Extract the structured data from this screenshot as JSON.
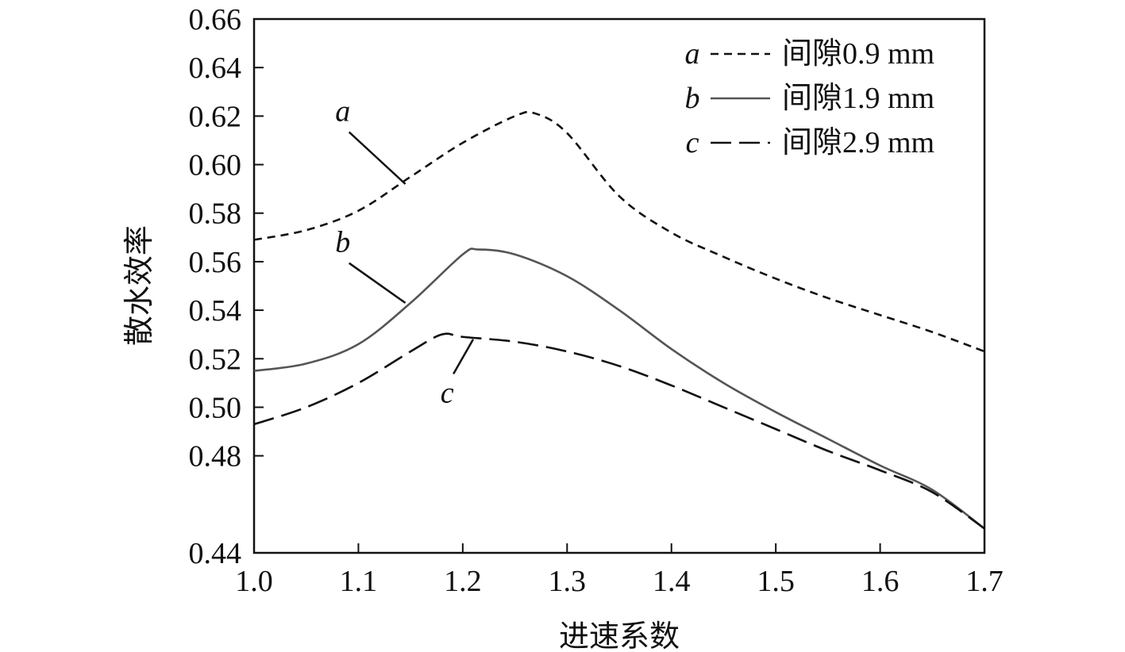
{
  "chart_data": {
    "type": "line",
    "xlabel": "进速系数",
    "ylabel": "散水效率",
    "xlim": [
      1.0,
      1.7
    ],
    "ylim": [
      0.44,
      0.66
    ],
    "xticks": [
      "1.0",
      "1.1",
      "1.2",
      "1.3",
      "1.4",
      "1.5",
      "1.6",
      "1.7"
    ],
    "yticks": [
      "0.44",
      "0.48",
      "0.50",
      "0.52",
      "0.54",
      "0.56",
      "0.58",
      "0.60",
      "0.62",
      "0.64",
      "0.66"
    ],
    "grid": false,
    "legend_position": "top-right",
    "series": [
      {
        "letter": "a",
        "name": "间隙0.9 mm",
        "dash": "short-dash",
        "color": "#111111",
        "x": [
          1.0,
          1.05,
          1.1,
          1.15,
          1.2,
          1.25,
          1.27,
          1.3,
          1.35,
          1.4,
          1.45,
          1.5,
          1.55,
          1.6,
          1.65,
          1.7
        ],
        "y": [
          0.569,
          0.573,
          0.581,
          0.595,
          0.609,
          0.62,
          0.621,
          0.613,
          0.587,
          0.572,
          0.562,
          0.553,
          0.545,
          0.538,
          0.531,
          0.523
        ]
      },
      {
        "letter": "b",
        "name": "间隙1.9 mm",
        "dash": "solid",
        "color": "#555555",
        "x": [
          1.0,
          1.05,
          1.1,
          1.15,
          1.2,
          1.215,
          1.25,
          1.3,
          1.35,
          1.4,
          1.45,
          1.5,
          1.55,
          1.6,
          1.65,
          1.7
        ],
        "y": [
          0.515,
          0.518,
          0.526,
          0.543,
          0.563,
          0.565,
          0.563,
          0.554,
          0.54,
          0.524,
          0.51,
          0.498,
          0.487,
          0.476,
          0.466,
          0.45
        ]
      },
      {
        "letter": "c",
        "name": "间隙2.9 mm",
        "dash": "long-dash",
        "color": "#111111",
        "x": [
          1.0,
          1.05,
          1.1,
          1.15,
          1.18,
          1.2,
          1.25,
          1.3,
          1.35,
          1.4,
          1.45,
          1.5,
          1.55,
          1.6,
          1.65,
          1.7
        ],
        "y": [
          0.493,
          0.5,
          0.51,
          0.523,
          0.53,
          0.529,
          0.527,
          0.523,
          0.517,
          0.509,
          0.5,
          0.491,
          0.482,
          0.474,
          0.465,
          0.45
        ]
      }
    ],
    "annotations": [
      {
        "label": "a",
        "x": 1.085,
        "y": 0.618,
        "target_x": 1.145,
        "target_y": 0.592
      },
      {
        "label": "b",
        "x": 1.085,
        "y": 0.564,
        "target_x": 1.145,
        "target_y": 0.543
      },
      {
        "label": "c",
        "x": 1.185,
        "y": 0.502,
        "target_x": 1.21,
        "target_y": 0.528
      }
    ]
  }
}
